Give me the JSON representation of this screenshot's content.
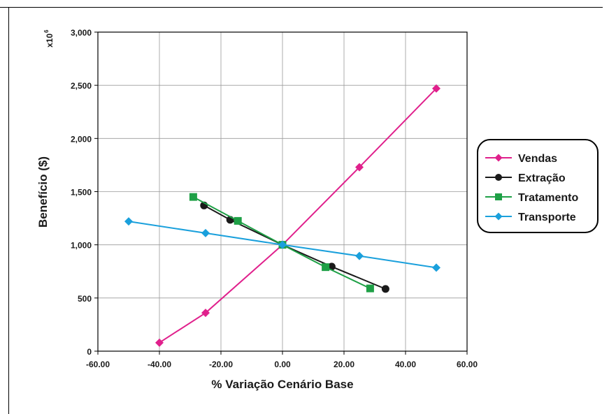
{
  "chart_data": {
    "type": "line",
    "title": "",
    "xlabel": "% Variação Cenário Base",
    "ylabel": "Benefício ($)",
    "y_multiplier_label": "x10",
    "y_multiplier_exponent": "6",
    "xlim": [
      -60,
      60
    ],
    "ylim": [
      0,
      3000
    ],
    "xticks": [
      -60,
      -40,
      -20,
      0,
      20,
      40,
      60
    ],
    "xtick_labels": [
      "-60.00",
      "-40.00",
      "-20.00",
      "0.00",
      "20.00",
      "40.00",
      "60.00"
    ],
    "yticks": [
      0,
      500,
      1000,
      1500,
      2000,
      2500,
      3000
    ],
    "ytick_labels": [
      "0",
      "500",
      "1,000",
      "1,500",
      "2,000",
      "2,500",
      "3,000"
    ],
    "grid": true,
    "legend_position": "right",
    "series": [
      {
        "name": "Vendas",
        "color": "#e0208c",
        "marker": "diamond",
        "x": [
          -40,
          -25,
          0,
          25,
          50
        ],
        "y": [
          80,
          360,
          1000,
          1730,
          2470
        ]
      },
      {
        "name": "Extração",
        "color": "#1a1a1a",
        "marker": "circle",
        "x": [
          -25.5,
          -17,
          0,
          16,
          33.5
        ],
        "y": [
          1370,
          1235,
          1000,
          795,
          585
        ]
      },
      {
        "name": "Tratamento",
        "color": "#1ea046",
        "marker": "square",
        "x": [
          -29,
          -14.5,
          0,
          14,
          28.5
        ],
        "y": [
          1450,
          1225,
          1000,
          790,
          590
        ]
      },
      {
        "name": "Transporte",
        "color": "#1aa0dc",
        "marker": "diamond",
        "x": [
          -50,
          -25,
          0,
          25,
          50
        ],
        "y": [
          1220,
          1110,
          1000,
          895,
          785
        ]
      }
    ]
  }
}
